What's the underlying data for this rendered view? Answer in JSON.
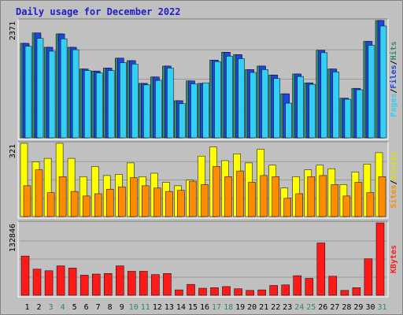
{
  "chart_data": {
    "type": "bar",
    "title": "Daily usage for December 2022",
    "days": [
      "1",
      "2",
      "3",
      "4",
      "5",
      "6",
      "7",
      "8",
      "9",
      "10",
      "11",
      "12",
      "13",
      "14",
      "15",
      "16",
      "17",
      "18",
      "19",
      "20",
      "21",
      "22",
      "23",
      "24",
      "25",
      "26",
      "27",
      "28",
      "29",
      "30",
      "31"
    ],
    "weekend_days": [
      "3",
      "4",
      "10",
      "11",
      "17",
      "18",
      "24",
      "25",
      "31"
    ],
    "panels": [
      {
        "id": "hits-files-pages",
        "max_label": "2371",
        "ymax": 2371,
        "axis_title": [
          "Pages",
          "/",
          "Files",
          "/",
          "Hits"
        ],
        "series": [
          {
            "name": "Hits",
            "color": "#2e8b7a",
            "values": [
              1910,
              2120,
              1830,
              2100,
              1830,
              1390,
              1350,
              1410,
              1610,
              1560,
              1100,
              1230,
              1450,
              750,
              1150,
              1100,
              1570,
              1730,
              1680,
              1380,
              1450,
              1270,
              890,
              1290,
              1110,
              1770,
              1390,
              800,
              1000,
              1950,
              2371
            ]
          },
          {
            "name": "Files",
            "color": "#1e46e0",
            "values": [
              1910,
              2120,
              1830,
              2100,
              1830,
              1390,
              1350,
              1410,
              1610,
              1560,
              1100,
              1230,
              1450,
              750,
              1150,
              1100,
              1570,
              1730,
              1680,
              1380,
              1450,
              1270,
              890,
              1290,
              1110,
              1770,
              1390,
              800,
              1000,
              1950,
              2371
            ]
          },
          {
            "name": "Pages",
            "color": "#33d0f5",
            "values": [
              1850,
              2010,
              1750,
              2000,
              1780,
              1360,
              1310,
              1360,
              1520,
              1490,
              1070,
              1160,
              1410,
              690,
              1090,
              1110,
              1540,
              1650,
              1600,
              1320,
              1380,
              1200,
              700,
              1240,
              1080,
              1720,
              1330,
              780,
              970,
              1870,
              2260
            ]
          }
        ]
      },
      {
        "id": "visits-sites",
        "max_label": "321",
        "ymax": 321,
        "axis_title": [
          "Sites",
          "/",
          "Visits"
        ],
        "series": [
          {
            "name": "Visits",
            "color": "#ffff00",
            "values": [
              321,
              240,
              255,
              321,
              255,
              175,
              220,
              180,
              185,
              235,
              175,
              190,
              150,
              135,
              160,
              265,
              305,
              245,
              275,
              235,
              295,
              225,
              125,
              175,
              205,
              225,
              210,
              140,
              195,
              230,
              280
            ]
          },
          {
            "name": "Sites",
            "color": "#ff8c00",
            "values": [
              135,
              205,
              105,
              175,
              110,
              90,
              100,
              120,
              130,
              170,
              135,
              125,
              110,
              115,
              155,
              140,
              220,
              175,
              200,
              150,
              180,
              175,
              80,
              100,
              175,
              180,
              140,
              90,
              150,
              105,
              175
            ]
          }
        ]
      },
      {
        "id": "kbytes",
        "max_label": "132846",
        "ymax": 132846,
        "axis_title": [
          "KBytes"
        ],
        "series": [
          {
            "name": "KBytes",
            "color": "#ff1a1a",
            "values": [
              72000,
              48000,
              45000,
              54000,
              50000,
              37000,
              39000,
              40000,
              54000,
              44000,
              44000,
              38000,
              40000,
              10000,
              20000,
              13000,
              14000,
              16000,
              12000,
              9000,
              10000,
              18000,
              19000,
              36000,
              31000,
              96000,
              35000,
              9000,
              14000,
              67000,
              132846
            ]
          }
        ]
      }
    ]
  }
}
